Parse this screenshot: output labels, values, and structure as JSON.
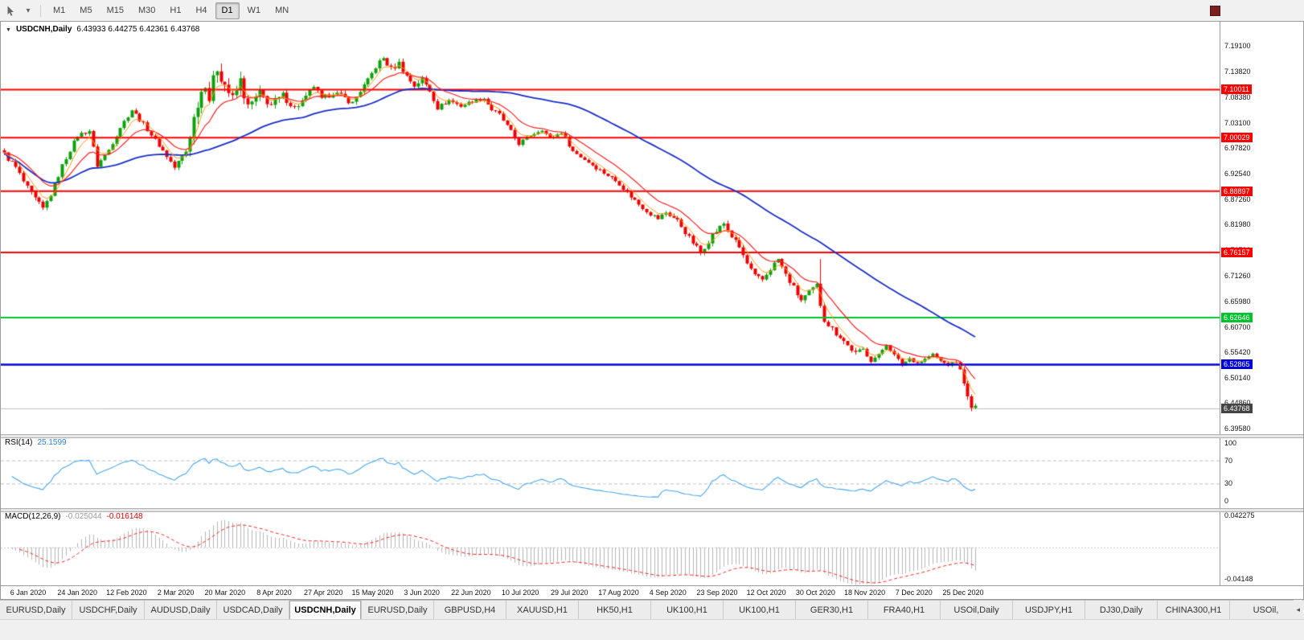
{
  "toolbar": {
    "timeframes": [
      "M1",
      "M5",
      "M15",
      "M30",
      "H1",
      "H4",
      "D1",
      "W1",
      "MN"
    ],
    "active_timeframe": "D1"
  },
  "chart_data": {
    "type": "candlestick",
    "symbol": "USDCNH",
    "timeframe": "Daily",
    "title": "USDCNH,Daily",
    "ohlc": {
      "open": "6.43933",
      "high": "6.44275",
      "low": "6.42361",
      "close": "6.43768"
    },
    "ohlc_text": "6.43933 6.44275 6.42361 6.43768",
    "ylim": [
      6.3841,
      7.2411
    ],
    "price_ticks": [
      "7.19100",
      "7.13820",
      "7.08380",
      "7.03100",
      "6.97820",
      "6.92540",
      "6.87260",
      "6.81980",
      "6.76700",
      "6.71260",
      "6.65980",
      "6.60700",
      "6.55420",
      "6.50140",
      "6.44860",
      "6.39580"
    ],
    "date_ticks": [
      "6 Jan 2020",
      "24 Jan 2020",
      "12 Feb 2020",
      "2 Mar 2020",
      "20 Mar 2020",
      "8 Apr 2020",
      "27 Apr 2020",
      "15 May 2020",
      "3 Jun 2020",
      "22 Jun 2020",
      "10 Jul 2020",
      "29 Jul 2020",
      "17 Aug 2020",
      "4 Sep 2020",
      "23 Sep 2020",
      "12 Oct 2020",
      "30 Oct 2020",
      "18 Nov 2020",
      "7 Dec 2020",
      "25 Dec 2020"
    ],
    "hlines": [
      {
        "price": 7.10011,
        "label": "7.10011",
        "color": "#ff0000",
        "width": 2
      },
      {
        "price": 7.00029,
        "label": "7.00029",
        "color": "#ff0000",
        "width": 2
      },
      {
        "price": 6.88897,
        "label": "6.88897",
        "color": "#ff0000",
        "width": 2
      },
      {
        "price": 6.76157,
        "label": "6.76157",
        "color": "#ff0000",
        "width": 2
      },
      {
        "price": 6.62646,
        "label": "6.62646",
        "color": "#00c22d",
        "width": 2
      },
      {
        "price": 6.52865,
        "label": "6.52865",
        "color": "#0000dd",
        "width": 2.5
      }
    ],
    "current_price": {
      "value": 6.43768,
      "label": "6.43768",
      "badge_bg": "#444444",
      "line_color": "#bbbbbb"
    },
    "bars": 252,
    "plot_right_fraction": 0.8,
    "bull_color": "#0ca10c",
    "bear_color": "#ee0000",
    "close_anchors": [
      [
        0,
        6.966
      ],
      [
        3,
        6.938
      ],
      [
        6,
        6.894
      ],
      [
        8,
        6.872
      ],
      [
        10,
        6.852
      ],
      [
        12,
        6.882
      ],
      [
        15,
        6.942
      ],
      [
        17,
        6.975
      ],
      [
        19,
        7.005
      ],
      [
        22,
        7.015
      ],
      [
        24,
        6.942
      ],
      [
        27,
        6.975
      ],
      [
        30,
        7.022
      ],
      [
        33,
        7.058
      ],
      [
        36,
        7.028
      ],
      [
        39,
        6.995
      ],
      [
        42,
        6.962
      ],
      [
        44,
        6.938
      ],
      [
        47,
        6.972
      ],
      [
        50,
        7.075
      ],
      [
        52,
        7.118
      ],
      [
        53,
        7.082
      ],
      [
        55,
        7.148
      ],
      [
        57,
        7.112
      ],
      [
        59,
        7.078
      ],
      [
        61,
        7.118
      ],
      [
        63,
        7.062
      ],
      [
        66,
        7.092
      ],
      [
        69,
        7.068
      ],
      [
        72,
        7.088
      ],
      [
        75,
        7.062
      ],
      [
        78,
        7.082
      ],
      [
        80,
        7.108
      ],
      [
        82,
        7.078
      ],
      [
        85,
        7.095
      ],
      [
        88,
        7.082
      ],
      [
        90,
        7.072
      ],
      [
        92,
        7.098
      ],
      [
        94,
        7.118
      ],
      [
        96,
        7.148
      ],
      [
        98,
        7.165
      ],
      [
        100,
        7.142
      ],
      [
        102,
        7.155
      ],
      [
        104,
        7.128
      ],
      [
        106,
        7.108
      ],
      [
        108,
        7.122
      ],
      [
        110,
        7.098
      ],
      [
        112,
        7.062
      ],
      [
        115,
        7.078
      ],
      [
        118,
        7.066
      ],
      [
        121,
        7.076
      ],
      [
        124,
        7.082
      ],
      [
        126,
        7.058
      ],
      [
        128,
        7.048
      ],
      [
        131,
        7.012
      ],
      [
        133,
        6.988
      ],
      [
        136,
        7.005
      ],
      [
        139,
        7.018
      ],
      [
        141,
        6.998
      ],
      [
        144,
        7.012
      ],
      [
        147,
        6.972
      ],
      [
        150,
        6.955
      ],
      [
        153,
        6.938
      ],
      [
        156,
        6.922
      ],
      [
        159,
        6.905
      ],
      [
        161,
        6.886
      ],
      [
        164,
        6.862
      ],
      [
        167,
        6.842
      ],
      [
        169,
        6.832
      ],
      [
        171,
        6.845
      ],
      [
        174,
        6.828
      ],
      [
        177,
        6.792
      ],
      [
        180,
        6.762
      ],
      [
        183,
        6.798
      ],
      [
        186,
        6.822
      ],
      [
        188,
        6.795
      ],
      [
        190,
        6.772
      ],
      [
        192,
        6.738
      ],
      [
        194,
        6.712
      ],
      [
        196,
        6.705
      ],
      [
        198,
        6.728
      ],
      [
        200,
        6.748
      ],
      [
        202,
        6.715
      ],
      [
        204,
        6.688
      ],
      [
        206,
        6.662
      ],
      [
        208,
        6.678
      ],
      [
        210,
        6.692
      ],
      [
        211,
        6.655
      ],
      [
        212,
        6.625
      ],
      [
        214,
        6.602
      ],
      [
        216,
        6.588
      ],
      [
        218,
        6.568
      ],
      [
        220,
        6.552
      ],
      [
        222,
        6.56
      ],
      [
        224,
        6.538
      ],
      [
        226,
        6.548
      ],
      [
        228,
        6.572
      ],
      [
        230,
        6.548
      ],
      [
        232,
        6.528
      ],
      [
        234,
        6.542
      ],
      [
        236,
        6.532
      ],
      [
        238,
        6.54
      ],
      [
        240,
        6.55
      ],
      [
        242,
        6.536
      ],
      [
        244,
        6.528
      ],
      [
        246,
        6.535
      ],
      [
        248,
        6.496
      ],
      [
        249,
        6.458
      ],
      [
        250,
        6.436
      ],
      [
        251,
        6.444
      ]
    ],
    "volatility_anchors": [
      [
        0,
        0.01
      ],
      [
        6,
        0.012
      ],
      [
        12,
        0.009
      ],
      [
        20,
        0.008
      ],
      [
        28,
        0.008
      ],
      [
        40,
        0.007
      ],
      [
        46,
        0.012
      ],
      [
        50,
        0.026
      ],
      [
        55,
        0.03
      ],
      [
        60,
        0.024
      ],
      [
        65,
        0.018
      ],
      [
        72,
        0.013
      ],
      [
        80,
        0.012
      ],
      [
        90,
        0.01
      ],
      [
        98,
        0.012
      ],
      [
        105,
        0.01
      ],
      [
        112,
        0.008
      ],
      [
        122,
        0.006
      ],
      [
        132,
        0.008
      ],
      [
        140,
        0.006
      ],
      [
        150,
        0.007
      ],
      [
        160,
        0.008
      ],
      [
        170,
        0.008
      ],
      [
        180,
        0.01
      ],
      [
        190,
        0.01
      ],
      [
        200,
        0.009
      ],
      [
        208,
        0.012
      ],
      [
        212,
        0.016
      ],
      [
        218,
        0.01
      ],
      [
        226,
        0.007
      ],
      [
        238,
        0.006
      ],
      [
        246,
        0.005
      ],
      [
        248,
        0.014
      ],
      [
        251,
        0.01
      ]
    ],
    "wick_events": [
      {
        "bar": 211,
        "high": 6.748
      }
    ],
    "ma_lines": [
      {
        "period": 55,
        "type": "sma",
        "color": "#1a2ec8",
        "width": 1.8
      },
      {
        "period": 13,
        "type": "ema",
        "color": "#ff2020",
        "width": 1.2
      },
      {
        "period": 5,
        "type": "ema",
        "color": "#ff9912",
        "width": 1
      }
    ],
    "rsi": {
      "label": "RSI(14)",
      "value": "25.1599",
      "period": 14,
      "color": "#46a6f0",
      "levels": [
        70,
        30
      ],
      "level_color": "#bdbdbd",
      "scale_ticks": [
        "100",
        "70",
        "30",
        "0"
      ],
      "scale_values": [
        100,
        70,
        30,
        0
      ]
    },
    "macd": {
      "label": "MACD(12,26,9)",
      "main_value": "-0.025044",
      "signal_value": "-0.016148",
      "fast": 12,
      "slow": 26,
      "signal": 9,
      "hist_color": "#b4b4b4",
      "signal_color": "#ff2020",
      "zero_color": "#c8c8c8",
      "scale_ticks": [
        "0.042275",
        "-0.04148"
      ],
      "scale_values": [
        0.042275,
        -0.04148
      ]
    }
  },
  "tabs": {
    "items": [
      "EURUSD,Daily",
      "USDCHF,Daily",
      "AUDUSD,Daily",
      "USDCAD,Daily",
      "USDCNH,Daily",
      "EURUSD,Daily",
      "GBPUSD,H4",
      "XAUUSD,H1",
      "HK50,H1",
      "UK100,H1",
      "UK100,H1",
      "GER30,H1",
      "FRA40,H1",
      "USOil,Daily",
      "USDJPY,H1",
      "DJ30,Daily",
      "CHINA300,H1",
      "USOil,"
    ],
    "active_index": 4,
    "scroll_arrow": "◂"
  }
}
